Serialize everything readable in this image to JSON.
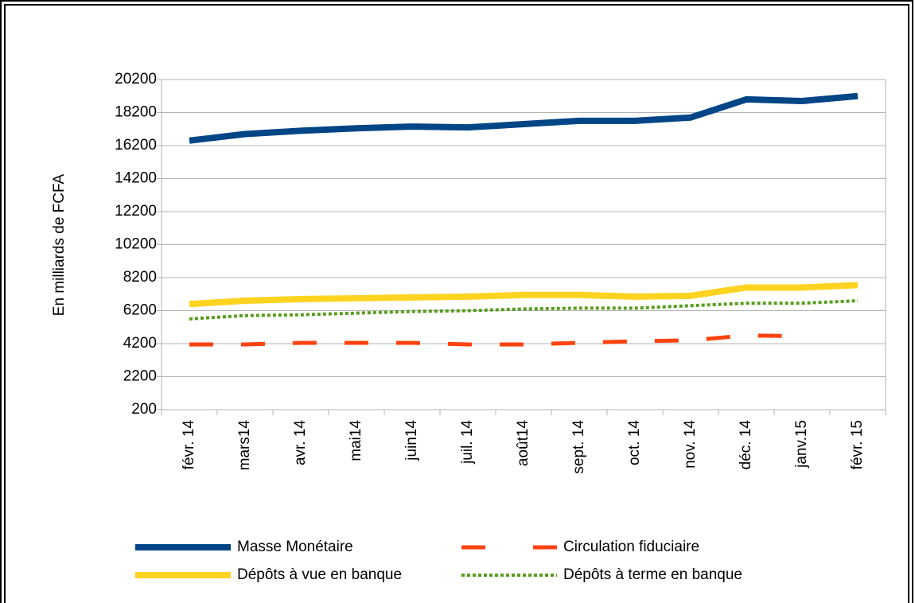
{
  "chart_data": {
    "type": "line",
    "y_axis_label": "En milliards de FCFA",
    "categories": [
      "févr. 14",
      "mars14",
      "avr. 14",
      "mai14",
      "juin14",
      "juil. 14",
      "août14",
      "sept. 14",
      "oct. 14",
      "nov. 14",
      "déc. 14",
      "janv.15",
      "févr. 15"
    ],
    "series": [
      {
        "name": "Masse Monétaire",
        "color": "#004586",
        "style": "solid",
        "values": [
          16500,
          16900,
          17100,
          17250,
          17350,
          17300,
          17500,
          17700,
          17700,
          17900,
          19000,
          18900,
          19200
        ]
      },
      {
        "name": "Circulation fiduciaire",
        "color": "#ff420e",
        "style": "dashed",
        "values": [
          4150,
          4150,
          4250,
          4250,
          4250,
          4150,
          4150,
          4250,
          4350,
          4400,
          4700,
          4650,
          null
        ]
      },
      {
        "name": "Dépôts à vue en banque",
        "color": "#ffd320",
        "style": "solid",
        "values": [
          6600,
          6800,
          6900,
          6950,
          7000,
          7050,
          7150,
          7150,
          7050,
          7100,
          7600,
          7600,
          7750
        ]
      },
      {
        "name": "Dépôts à terme en banque",
        "color": "#579d1c",
        "style": "dotted",
        "values": [
          5700,
          5900,
          5950,
          6050,
          6150,
          6200,
          6300,
          6350,
          6350,
          6500,
          6650,
          6650,
          6800
        ]
      }
    ],
    "ylim": [
      200,
      20200
    ],
    "yticks": [
      200,
      2200,
      4200,
      6200,
      8200,
      10200,
      12200,
      14200,
      16200,
      18200,
      20200
    ],
    "grid": true
  }
}
